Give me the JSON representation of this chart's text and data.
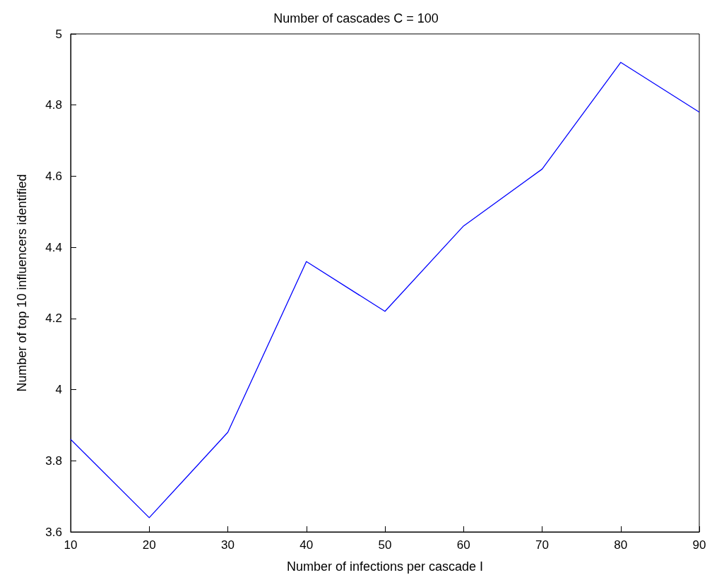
{
  "chart_data": {
    "type": "line",
    "title": "Number of cascades C = 100",
    "xlabel": "Number of infections per cascade I",
    "ylabel": "Number of top 10 influencers identified",
    "x": [
      10,
      20,
      30,
      40,
      50,
      60,
      70,
      80,
      90
    ],
    "series": [
      {
        "color": "#0000ff",
        "values": [
          3.86,
          3.64,
          3.88,
          4.36,
          4.22,
          4.46,
          4.62,
          4.92,
          4.78
        ]
      }
    ],
    "xlim": [
      10,
      90
    ],
    "xticks": [
      10,
      20,
      30,
      40,
      50,
      60,
      70,
      80,
      90
    ],
    "ylim": [
      3.6,
      5
    ],
    "yticks": [
      3.6,
      3.8,
      4,
      4.2,
      4.4,
      4.6,
      4.8,
      5
    ],
    "grid": false,
    "marker": "none",
    "line_style": "solid"
  }
}
